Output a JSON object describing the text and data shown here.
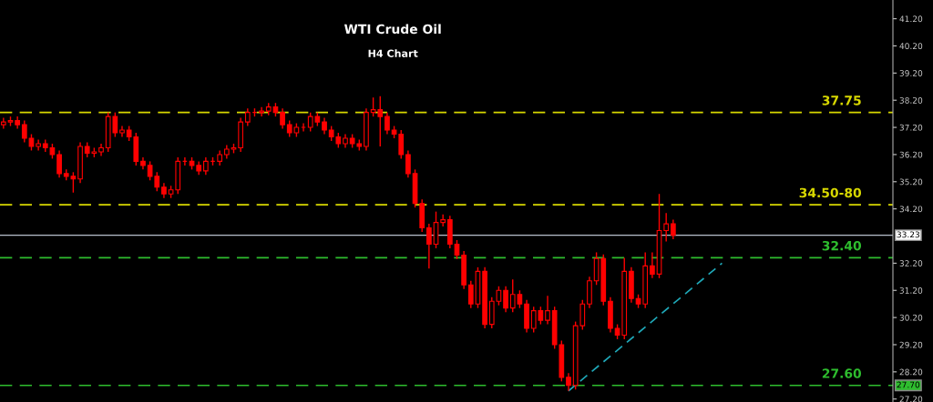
{
  "chart_data": {
    "type": "candlestick",
    "title": "WTI Crude Oil",
    "subtitle": "H4 Chart",
    "categories": [
      null,
      null,
      null,
      null,
      null,
      null,
      null,
      null,
      null,
      null,
      null,
      null,
      null,
      null,
      null,
      null,
      null,
      null,
      null,
      null,
      null,
      null,
      null,
      null,
      null,
      null,
      null,
      null,
      null,
      null,
      null,
      null,
      null,
      null,
      null,
      null,
      null,
      null,
      null,
      null,
      null,
      null,
      null,
      null,
      null,
      null,
      null,
      null,
      null,
      null,
      null,
      null,
      null,
      null,
      null,
      null,
      null,
      null,
      null,
      null,
      null,
      null,
      null,
      null,
      null,
      null,
      null,
      null,
      null,
      null,
      null,
      null,
      null,
      null,
      null,
      null,
      null,
      null,
      null,
      null,
      null,
      null,
      null,
      null,
      null,
      null,
      null,
      null,
      null,
      null,
      null,
      null,
      null,
      null,
      null,
      null,
      null,
      null,
      null,
      null,
      null,
      null,
      null,
      null,
      null,
      null,
      null,
      null,
      null,
      null,
      null,
      null,
      null,
      null,
      null,
      null,
      null,
      null,
      null,
      null,
      null,
      null,
      null,
      null,
      null,
      null,
      null,
      null
    ],
    "ohlc": [
      [
        37.3,
        37.55,
        37.15,
        37.4
      ],
      [
        37.4,
        37.6,
        37.25,
        37.45
      ],
      [
        37.45,
        37.6,
        37.15,
        37.3
      ],
      [
        37.3,
        37.45,
        36.65,
        36.8
      ],
      [
        36.8,
        36.95,
        36.35,
        36.5
      ],
      [
        36.5,
        36.75,
        36.35,
        36.6
      ],
      [
        36.6,
        36.75,
        36.3,
        36.45
      ],
      [
        36.45,
        36.6,
        36.05,
        36.2
      ],
      [
        36.2,
        36.35,
        35.35,
        35.5
      ],
      [
        35.5,
        35.65,
        35.25,
        35.4
      ],
      [
        35.4,
        35.55,
        34.8,
        35.3
      ],
      [
        35.3,
        36.65,
        35.15,
        36.5
      ],
      [
        36.5,
        36.65,
        36.1,
        36.25
      ],
      [
        36.25,
        36.45,
        36.1,
        36.3
      ],
      [
        36.3,
        36.6,
        36.15,
        36.45
      ],
      [
        36.45,
        37.75,
        36.3,
        37.6
      ],
      [
        37.6,
        37.75,
        36.85,
        37.0
      ],
      [
        37.0,
        37.25,
        36.85,
        37.1
      ],
      [
        37.1,
        37.25,
        36.7,
        36.85
      ],
      [
        36.85,
        37.0,
        35.8,
        35.95
      ],
      [
        35.95,
        36.1,
        35.65,
        35.8
      ],
      [
        35.8,
        35.95,
        35.25,
        35.4
      ],
      [
        35.4,
        35.55,
        34.85,
        35.0
      ],
      [
        35.0,
        35.15,
        34.6,
        34.75
      ],
      [
        34.75,
        35.05,
        34.6,
        34.9
      ],
      [
        34.9,
        36.1,
        34.75,
        35.95
      ],
      [
        35.95,
        36.1,
        35.8,
        35.95
      ],
      [
        35.95,
        36.1,
        35.65,
        35.8
      ],
      [
        35.8,
        35.95,
        35.45,
        35.6
      ],
      [
        35.6,
        36.1,
        35.45,
        35.95
      ],
      [
        35.95,
        36.1,
        35.8,
        35.95
      ],
      [
        35.95,
        36.35,
        35.8,
        36.2
      ],
      [
        36.2,
        36.55,
        36.05,
        36.4
      ],
      [
        36.4,
        36.6,
        36.25,
        36.45
      ],
      [
        36.45,
        37.55,
        36.3,
        37.4
      ],
      [
        37.4,
        37.9,
        37.25,
        37.75
      ],
      [
        37.75,
        37.9,
        37.6,
        37.75
      ],
      [
        37.75,
        37.95,
        37.6,
        37.8
      ],
      [
        37.8,
        38.1,
        37.65,
        37.95
      ],
      [
        37.95,
        38.1,
        37.6,
        37.75
      ],
      [
        37.75,
        37.9,
        37.15,
        37.3
      ],
      [
        37.3,
        37.45,
        36.85,
        37.0
      ],
      [
        37.0,
        37.35,
        36.85,
        37.2
      ],
      [
        37.2,
        37.35,
        37.05,
        37.2
      ],
      [
        37.2,
        37.75,
        37.05,
        37.6
      ],
      [
        37.6,
        37.75,
        37.25,
        37.4
      ],
      [
        37.4,
        37.55,
        36.95,
        37.1
      ],
      [
        37.1,
        37.25,
        36.7,
        36.85
      ],
      [
        36.85,
        37.0,
        36.45,
        36.6
      ],
      [
        36.6,
        36.95,
        36.45,
        36.8
      ],
      [
        36.8,
        36.95,
        36.45,
        36.6
      ],
      [
        36.6,
        36.75,
        36.35,
        36.5
      ],
      [
        36.5,
        37.9,
        36.35,
        37.75
      ],
      [
        37.75,
        38.3,
        37.6,
        37.85
      ],
      [
        37.85,
        38.35,
        36.5,
        37.6
      ],
      [
        37.6,
        37.75,
        36.95,
        37.1
      ],
      [
        37.1,
        37.25,
        36.8,
        36.95
      ],
      [
        36.95,
        37.1,
        36.05,
        36.2
      ],
      [
        36.2,
        36.35,
        35.35,
        35.5
      ],
      [
        35.5,
        35.65,
        34.25,
        34.4
      ],
      [
        34.4,
        34.55,
        33.35,
        33.5
      ],
      [
        33.5,
        33.65,
        32.0,
        32.9
      ],
      [
        32.9,
        34.1,
        32.75,
        33.7
      ],
      [
        33.7,
        34.0,
        33.55,
        33.8
      ],
      [
        33.8,
        33.95,
        32.75,
        32.9
      ],
      [
        32.9,
        33.05,
        32.35,
        32.5
      ],
      [
        32.5,
        32.65,
        31.25,
        31.4
      ],
      [
        31.4,
        31.55,
        30.55,
        30.7
      ],
      [
        30.7,
        32.05,
        30.55,
        31.9
      ],
      [
        31.9,
        32.05,
        29.8,
        29.95
      ],
      [
        29.95,
        30.95,
        29.8,
        30.8
      ],
      [
        30.8,
        31.35,
        30.65,
        31.2
      ],
      [
        31.2,
        31.35,
        30.4,
        30.55
      ],
      [
        30.55,
        31.6,
        30.4,
        31.05
      ],
      [
        31.05,
        31.2,
        30.55,
        30.7
      ],
      [
        30.7,
        30.85,
        29.65,
        29.8
      ],
      [
        29.8,
        30.6,
        29.65,
        30.45
      ],
      [
        30.45,
        30.6,
        29.95,
        30.1
      ],
      [
        30.1,
        31.0,
        29.95,
        30.45
      ],
      [
        30.45,
        30.6,
        29.05,
        29.2
      ],
      [
        29.2,
        29.35,
        27.85,
        28.0
      ],
      [
        28.0,
        28.15,
        27.5,
        27.7
      ],
      [
        27.7,
        30.05,
        27.55,
        29.9
      ],
      [
        29.9,
        30.85,
        29.75,
        30.7
      ],
      [
        30.7,
        31.7,
        30.55,
        31.55
      ],
      [
        31.55,
        32.6,
        31.4,
        32.37
      ],
      [
        32.37,
        32.52,
        30.65,
        30.8
      ],
      [
        30.8,
        30.95,
        29.65,
        29.8
      ],
      [
        29.8,
        29.95,
        29.4,
        29.55
      ],
      [
        29.55,
        32.4,
        29.4,
        31.9
      ],
      [
        31.9,
        32.05,
        30.75,
        30.9
      ],
      [
        30.9,
        31.05,
        30.55,
        30.7
      ],
      [
        30.7,
        32.6,
        30.55,
        32.1
      ],
      [
        32.1,
        32.6,
        31.65,
        31.8
      ],
      [
        31.8,
        34.75,
        31.65,
        33.4
      ],
      [
        33.4,
        34.05,
        33.0,
        33.65
      ],
      [
        33.65,
        33.8,
        33.08,
        33.23
      ],
      null,
      null,
      null,
      null,
      null,
      null,
      null,
      null,
      null,
      null,
      null,
      null,
      null,
      null,
      null,
      null,
      null,
      null,
      null,
      null,
      null,
      null,
      null,
      null,
      null,
      null,
      null,
      null,
      null,
      null,
      null
    ],
    "color": "#ff0000",
    "series": [
      {
        "type": "line",
        "values": [
          null,
          null,
          null,
          null,
          null,
          null,
          null,
          null,
          null,
          null,
          null,
          null,
          null,
          null,
          null,
          null,
          null,
          null,
          null,
          null,
          null,
          null,
          null,
          null,
          null,
          null,
          null,
          null,
          null,
          null,
          null,
          null,
          null,
          null,
          null,
          null,
          null,
          null,
          null,
          null,
          null,
          null,
          null,
          null,
          null,
          null,
          null,
          null,
          null,
          null,
          null,
          null,
          null,
          null,
          null,
          null,
          null,
          null,
          null,
          null,
          null,
          null,
          null,
          null,
          null,
          null,
          null,
          null,
          null,
          null,
          null,
          null,
          null,
          null,
          null,
          null,
          null,
          null,
          null,
          null,
          null,
          27.5,
          null,
          null,
          null,
          null,
          null,
          null,
          null,
          null,
          null,
          null,
          null,
          null,
          null,
          null,
          null,
          null,
          null,
          null,
          null,
          null,
          null,
          32.2,
          null,
          null,
          null,
          null,
          null,
          null,
          null,
          null,
          null,
          null,
          null,
          null,
          null,
          null,
          null,
          null,
          null,
          null,
          null,
          null,
          null,
          null,
          null,
          null
        ],
        "color": "#1fa8b8",
        "line_style": "dashed"
      }
    ],
    "ref_lines": [
      {
        "axis": "y",
        "value": 37.75,
        "color": "#d8d800",
        "line_style": "dashed"
      },
      {
        "axis": "y",
        "value": 34.35,
        "color": "#d8d800",
        "line_style": "dashed"
      },
      {
        "axis": "y",
        "value": 32.4,
        "color": "#2ebd2e",
        "line_style": "dashed"
      },
      {
        "axis": "y",
        "value": 27.7,
        "label": "27.70",
        "color": "#2ebd2e",
        "line_style": "dashed"
      },
      {
        "axis": "y",
        "value": 33.23,
        "label": "33.23",
        "color": "#b8c0cc",
        "line_style": "solid"
      }
    ],
    "annotations": [
      {
        "text": "37.75",
        "y": 37.75
      },
      {
        "text": "34.50-80",
        "y": 34.35
      },
      {
        "text": "32.40",
        "y": 32.4
      },
      {
        "text": "27.60",
        "y": 27.7
      }
    ],
    "ylim": [
      27.09,
      41.89
    ],
    "yticks": [
      {
        "value": 27.2,
        "label": "27.20"
      },
      {
        "value": 28.2,
        "label": "28.20"
      },
      {
        "value": 29.2,
        "label": "29.20"
      },
      {
        "value": 30.2,
        "label": "30.20"
      },
      {
        "value": 31.2,
        "label": "31.20"
      },
      {
        "value": 32.2,
        "label": "32.20"
      },
      {
        "value": 34.2,
        "label": "34.20"
      },
      {
        "value": 35.2,
        "label": "35.20"
      },
      {
        "value": 36.2,
        "label": "36.20"
      },
      {
        "value": 37.2,
        "label": "37.20"
      },
      {
        "value": 38.2,
        "label": "38.20"
      },
      {
        "value": 39.2,
        "label": "39.20"
      },
      {
        "value": 40.2,
        "label": "40.20"
      },
      {
        "value": 41.2,
        "label": "41.20"
      }
    ],
    "tick_labels": "y",
    "grid": false,
    "legend": false
  }
}
